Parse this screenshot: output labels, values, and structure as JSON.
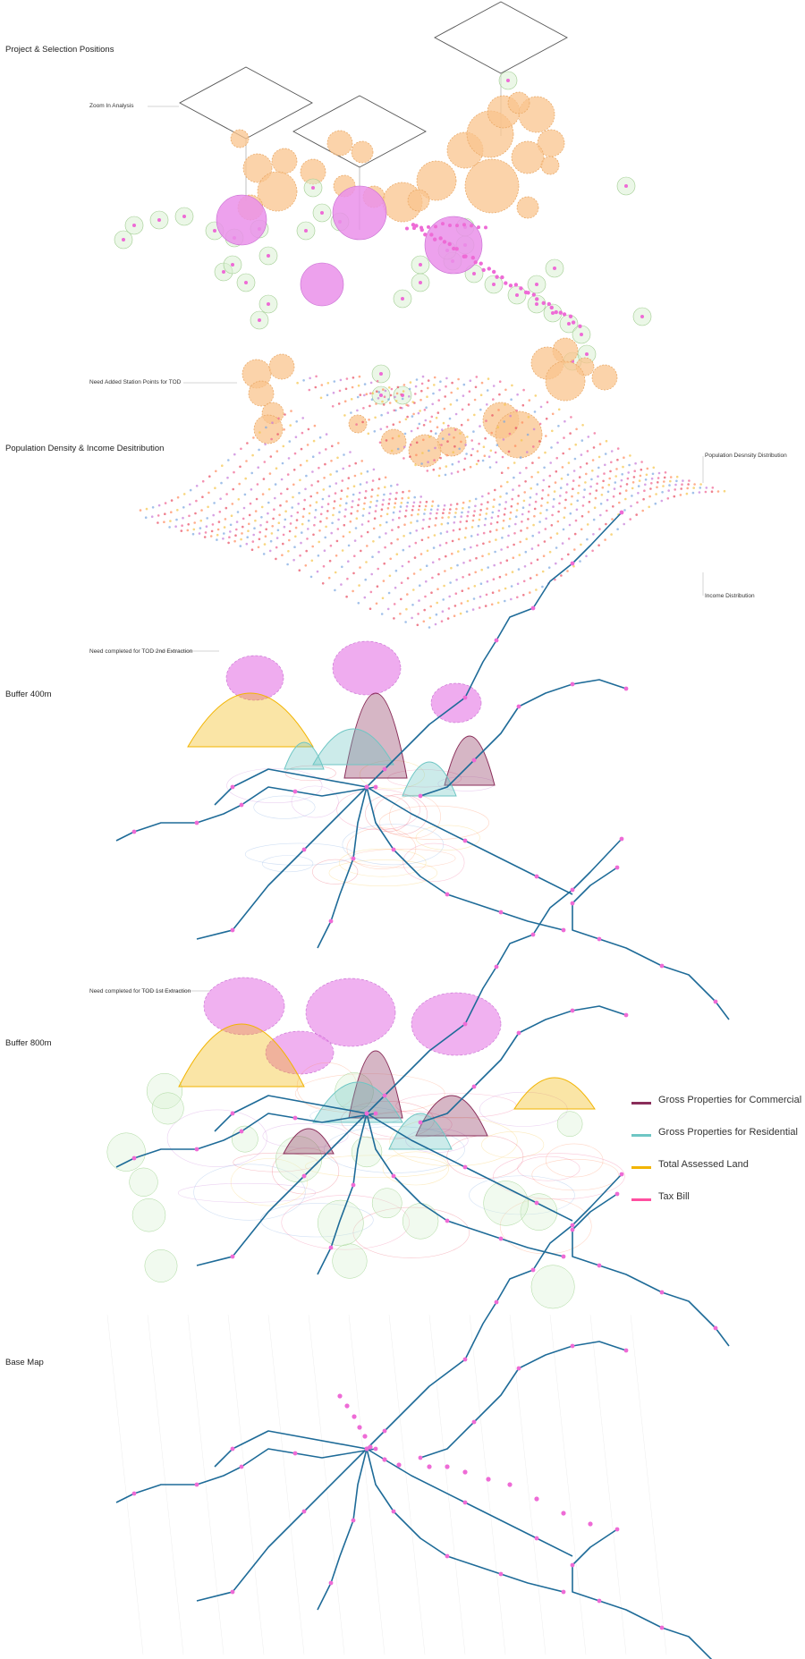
{
  "sections": {
    "project_selection": "Project & Selection Positions",
    "zoom_in": "Zoom In Analysis",
    "need_added": "Need Added Station Points for TOD",
    "pop_density_income": "Population Density & Income Desitribution",
    "pop_density_dist": "Population Desnsity Distribution",
    "income_dist": "Income Distribution",
    "need_2nd": "Need completed for TOD 2nd Extraction",
    "buffer_400": "Buffer 400m",
    "need_1st": "Need completed for TOD 1st Extraction",
    "buffer_800": "Buffer 800m",
    "base_map": "Base Map"
  },
  "legend": [
    {
      "label": "Gross Properties for Commercial",
      "color": "#8a2e5a"
    },
    {
      "label": "Gross Properties for Residential",
      "color": "#6ec6c4"
    },
    {
      "label": "Total Assessed Land",
      "color": "#f2b400"
    },
    {
      "label": "Tax Bill",
      "color": "#ff4fa0"
    }
  ],
  "colors": {
    "transit_line": "#1e6b98",
    "station": "#ee6bd6",
    "candidate": "#f9c48e",
    "selected": "#ea90ea",
    "buffer": "#d8f0d0"
  }
}
